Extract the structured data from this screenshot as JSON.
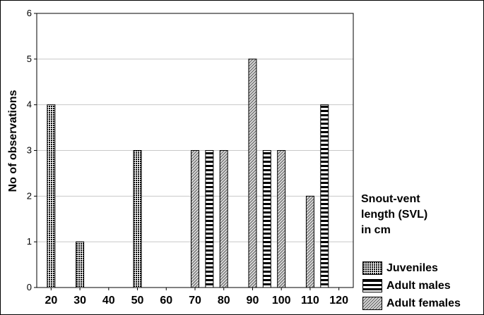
{
  "chart_data": {
    "type": "bar",
    "title": "",
    "ylabel": "No of observations",
    "xlabel": "Snout-vent length (SVL) in cm",
    "xlabel_lines": [
      "Snout-vent",
      "length (SVL)",
      "in cm"
    ],
    "xlim": [
      15,
      125
    ],
    "ylim": [
      0,
      6
    ],
    "yticks": [
      "0",
      "1",
      "2",
      "3",
      "4",
      "5",
      "6"
    ],
    "xticks": [
      "20",
      "30",
      "40",
      "50",
      "60",
      "70",
      "80",
      "90",
      "100",
      "110",
      "120"
    ],
    "grid": true,
    "legend_position": "bottom-right",
    "series": [
      {
        "name": "Juveniles",
        "pattern": "dense-grid",
        "points": [
          {
            "x": 20,
            "y": 4
          },
          {
            "x": 30,
            "y": 1
          },
          {
            "x": 50,
            "y": 3
          }
        ]
      },
      {
        "name": "Adult males",
        "pattern": "horizontal-stripes",
        "points": [
          {
            "x": 75,
            "y": 3
          },
          {
            "x": 95,
            "y": 3
          },
          {
            "x": 115,
            "y": 4
          }
        ]
      },
      {
        "name": "Adult females",
        "pattern": "diagonal-hatch",
        "points": [
          {
            "x": 70,
            "y": 3
          },
          {
            "x": 80,
            "y": 3
          },
          {
            "x": 90,
            "y": 5
          },
          {
            "x": 100,
            "y": 3
          },
          {
            "x": 110,
            "y": 2
          }
        ]
      }
    ]
  }
}
